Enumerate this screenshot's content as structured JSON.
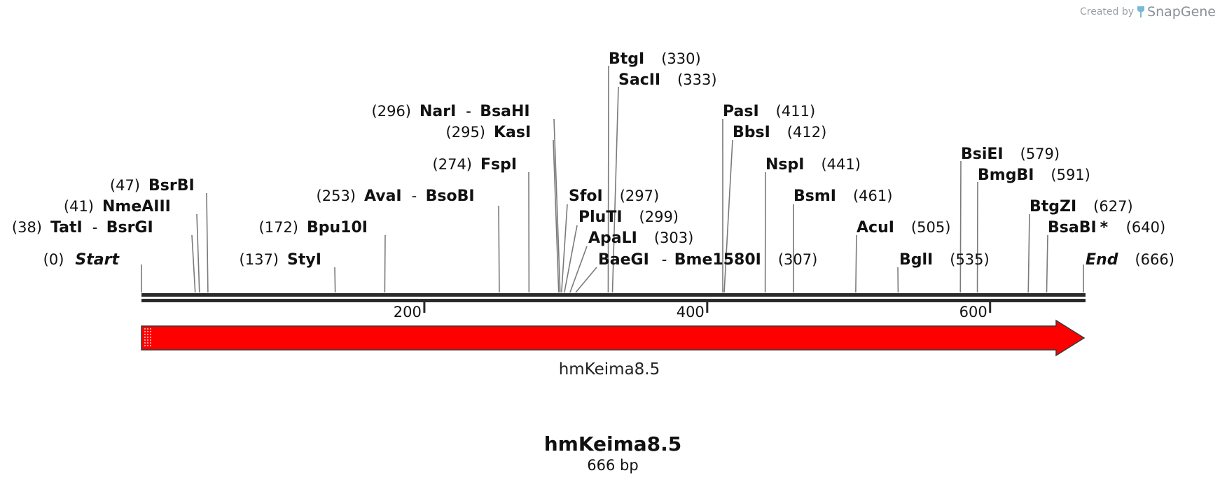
{
  "credit": {
    "prefix": "Created by",
    "brand": "SnapGene"
  },
  "sequence": {
    "name": "hmKeima8.5",
    "length_label": "666 bp",
    "length_bp": 666
  },
  "ruler": {
    "ticks": [
      200,
      400,
      600
    ]
  },
  "feature": {
    "label": "hmKeima8.5",
    "start": 1,
    "end": 666,
    "direction": "forward",
    "color": "#ff0000"
  },
  "sites": [
    {
      "id": "start",
      "name": "Start",
      "position": "0",
      "bp": 0,
      "italic": true
    },
    {
      "id": "tati",
      "name": "TatI",
      "partner": "BsrGI",
      "position": "38",
      "bp": 38
    },
    {
      "id": "nmeaiii",
      "name": "NmeAIII",
      "position": "41",
      "bp": 41
    },
    {
      "id": "bsrbi",
      "name": "BsrBI",
      "position": "47",
      "bp": 47
    },
    {
      "id": "styi",
      "name": "StyI",
      "position": "137",
      "bp": 137
    },
    {
      "id": "bpu10i",
      "name": "Bpu10I",
      "position": "172",
      "bp": 172
    },
    {
      "id": "avai",
      "name": "AvaI",
      "partner": "BsoBI",
      "position": "253",
      "bp": 253
    },
    {
      "id": "fspi",
      "name": "FspI",
      "position": "274",
      "bp": 274
    },
    {
      "id": "kasi",
      "name": "KasI",
      "position": "295",
      "bp": 295
    },
    {
      "id": "nari",
      "name": "NarI",
      "partner": "BsaHI",
      "position": "296",
      "bp": 296
    },
    {
      "id": "sfoi",
      "name": "SfoI",
      "position": "297",
      "bp": 297
    },
    {
      "id": "pluti",
      "name": "PluTI",
      "position": "299",
      "bp": 299
    },
    {
      "id": "apali",
      "name": "ApaLI",
      "position": "303",
      "bp": 303
    },
    {
      "id": "baegi",
      "name": "BaeGI",
      "partner": "Bme1580I",
      "position": "307",
      "bp": 307
    },
    {
      "id": "btgi",
      "name": "BtgI",
      "position": "330",
      "bp": 330
    },
    {
      "id": "sacii",
      "name": "SacII",
      "position": "333",
      "bp": 333
    },
    {
      "id": "pasi",
      "name": "PasI",
      "position": "411",
      "bp": 411
    },
    {
      "id": "bbsi",
      "name": "BbsI",
      "position": "412",
      "bp": 412
    },
    {
      "id": "nspi",
      "name": "NspI",
      "position": "441",
      "bp": 441
    },
    {
      "id": "bsmi",
      "name": "BsmI",
      "position": "461",
      "bp": 461
    },
    {
      "id": "acui",
      "name": "AcuI",
      "position": "505",
      "bp": 505
    },
    {
      "id": "bgli",
      "name": "BglI",
      "position": "535",
      "bp": 535
    },
    {
      "id": "bsiei",
      "name": "BsiEI",
      "position": "579",
      "bp": 579
    },
    {
      "id": "bmgbi",
      "name": "BmgBI",
      "position": "591",
      "bp": 591
    },
    {
      "id": "btgzi",
      "name": "BtgZI",
      "position": "627",
      "bp": 627
    },
    {
      "id": "bsabi",
      "name": "BsaBI",
      "suffix": "*",
      "position": "640",
      "bp": 640
    },
    {
      "id": "end",
      "name": "End",
      "position": "666",
      "bp": 666,
      "italic": true
    }
  ]
}
